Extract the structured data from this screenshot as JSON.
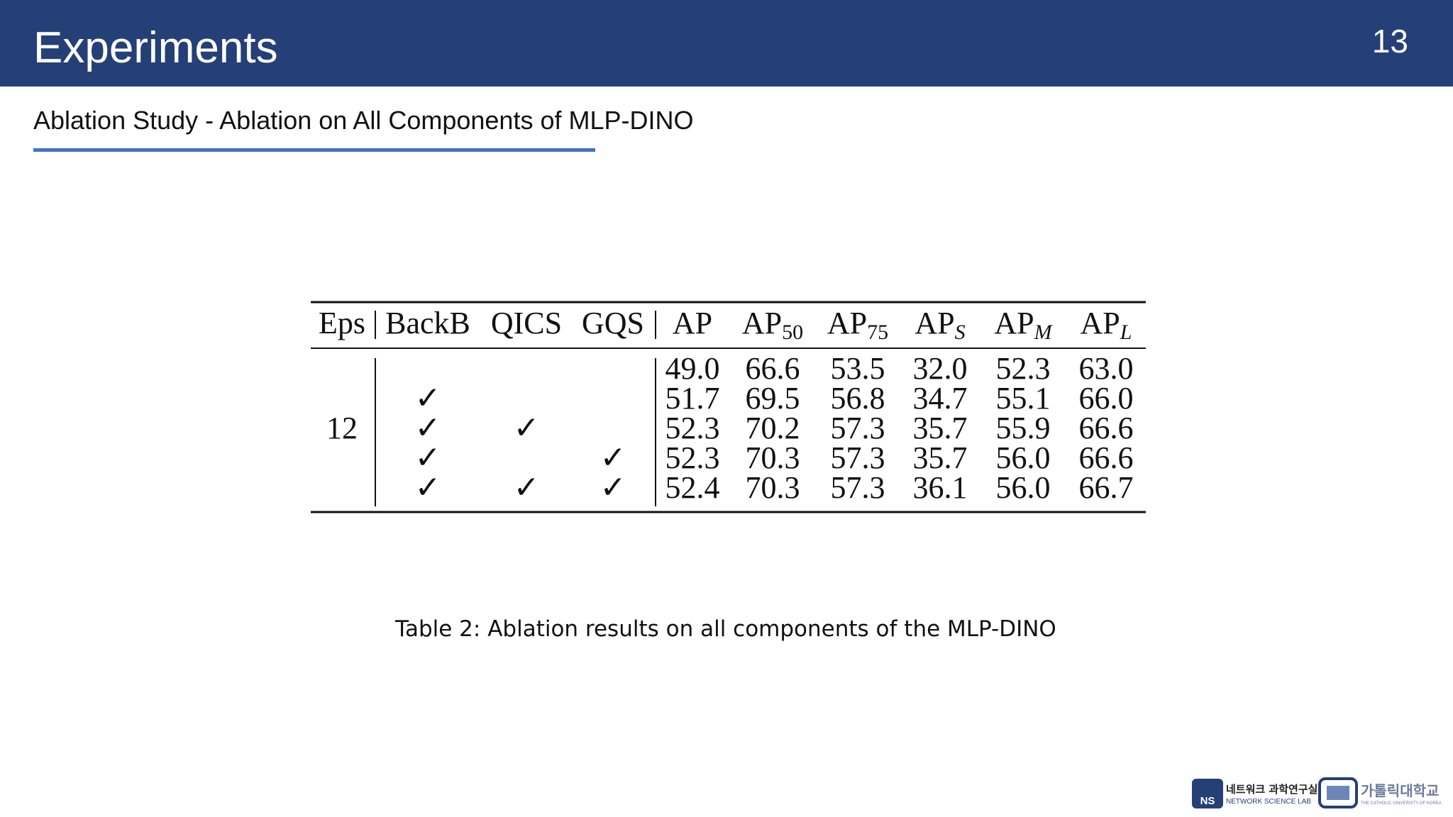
{
  "header": {
    "title": "Experiments",
    "page_number": "13"
  },
  "subtitle": "Ablation Study - Ablation on All Components of MLP-DINO",
  "table": {
    "columns": [
      {
        "base": "Eps"
      },
      {
        "base": "BackB"
      },
      {
        "base": "QICS"
      },
      {
        "base": "GQS"
      },
      {
        "base": "AP"
      },
      {
        "base": "AP",
        "sub": "50"
      },
      {
        "base": "AP",
        "sub": "75"
      },
      {
        "base": "AP",
        "sub": "S"
      },
      {
        "base": "AP",
        "sub": "M"
      },
      {
        "base": "AP",
        "sub": "L"
      }
    ],
    "epochs": "12",
    "check_mark": "✓",
    "rows": [
      {
        "checks": [
          false,
          false,
          false
        ],
        "values": [
          "49.0",
          "66.6",
          "53.5",
          "32.0",
          "52.3",
          "63.0"
        ]
      },
      {
        "checks": [
          true,
          false,
          false
        ],
        "values": [
          "51.7",
          "69.5",
          "56.8",
          "34.7",
          "55.1",
          "66.0"
        ]
      },
      {
        "checks": [
          true,
          true,
          false
        ],
        "values": [
          "52.3",
          "70.2",
          "57.3",
          "35.7",
          "55.9",
          "66.6"
        ]
      },
      {
        "checks": [
          true,
          false,
          true
        ],
        "values": [
          "52.3",
          "70.3",
          "57.3",
          "35.7",
          "56.0",
          "66.6"
        ]
      },
      {
        "checks": [
          true,
          true,
          true
        ],
        "values": [
          "52.4",
          "70.3",
          "57.3",
          "36.1",
          "56.0",
          "66.7"
        ]
      }
    ]
  },
  "caption": "Table 2: Ablation results on all components of the MLP-DINO",
  "logos": {
    "lab_badge": "NS",
    "lab_korean": "네트워크 과학연구실",
    "lab_english": "NETWORK SCIENCE LAB",
    "univ_korean": "가톨릭대학교",
    "univ_english": "THE CATHOLIC UNIVERSITY OF KOREA"
  }
}
